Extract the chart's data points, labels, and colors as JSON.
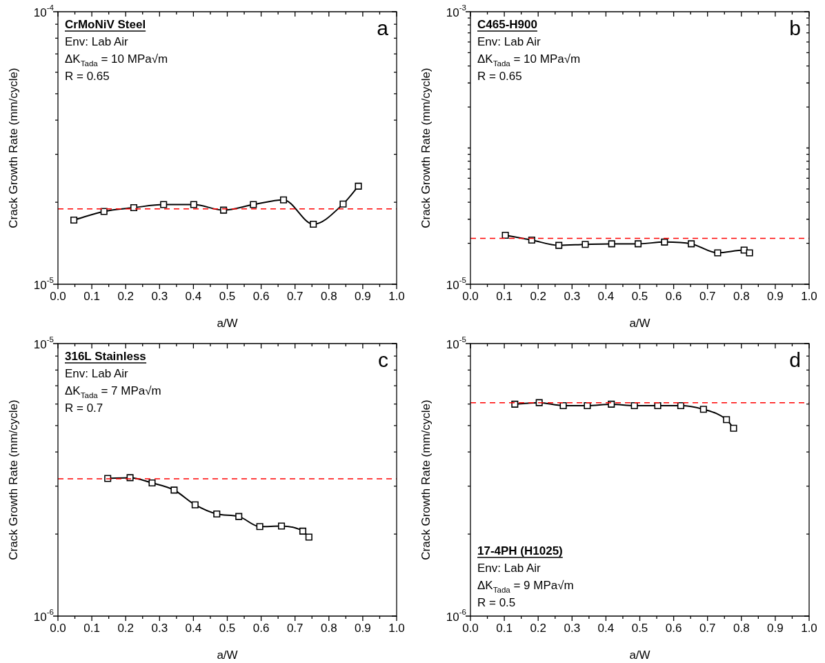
{
  "chart_data": [
    {
      "type": "line",
      "title": "CrMoNiV Steel",
      "xlabel": "a/W",
      "ylabel": "Crack Growth Rate (mm/cycle)",
      "annotations": [
        "Env: Lab Air",
        "ΔK$_{Tada}$ = 10 MPa√m",
        "R = 0.65",
        "a"
      ],
      "log": true,
      "marker": "square",
      "line_style": "solid",
      "x": [
        0.047,
        0.136,
        0.224,
        0.312,
        0.401,
        0.489,
        0.577,
        0.666,
        0.754,
        0.842,
        0.887
      ],
      "series": [
        {
          "color": "#000000",
          "values": [
            1.72e-05,
            1.85e-05,
            1.91e-05,
            1.96e-05,
            1.96e-05,
            1.87e-05,
            1.96e-05,
            2.04e-05,
            1.66e-05,
            1.97e-05,
            2.29e-05
          ]
        }
      ],
      "ref_lines": [
        {
          "axis": "y",
          "value": 1.89e-05,
          "color": "#ff0000",
          "line_style": "dashed"
        }
      ],
      "xlim": [
        0,
        1
      ],
      "xticks": [
        {
          "value": 0,
          "label": "0.0"
        },
        {
          "value": 0.05,
          "label": null
        },
        0.1,
        {
          "value": 0.15,
          "label": null
        },
        0.2,
        {
          "value": 0.25,
          "label": null
        },
        0.3,
        {
          "value": 0.35,
          "label": null
        },
        0.4,
        {
          "value": 0.45,
          "label": null
        },
        0.5,
        {
          "value": 0.55,
          "label": null
        },
        0.6,
        {
          "value": 0.65,
          "label": null
        },
        0.7,
        {
          "value": 0.75,
          "label": null
        },
        0.8,
        {
          "value": 0.85,
          "label": null
        },
        0.9,
        {
          "value": 0.95,
          "label": null
        },
        {
          "value": 1,
          "label": "1.0"
        }
      ],
      "ylim": [
        1e-05,
        0.0001
      ],
      "yticks": [
        {
          "value": 1e-05,
          "label": "10$^{-5}$"
        },
        {
          "value": 2e-05,
          "label": null
        },
        {
          "value": 3e-05,
          "label": null
        },
        {
          "value": 4e-05,
          "label": null
        },
        {
          "value": 5e-05,
          "label": null
        },
        {
          "value": 6e-05,
          "label": null
        },
        {
          "value": 7e-05,
          "label": null
        },
        {
          "value": 8e-05,
          "label": null
        },
        {
          "value": 9e-05,
          "label": null
        },
        {
          "value": 0.0001,
          "label": "10$^{-4}$"
        }
      ]
    },
    {
      "type": "line",
      "title": "C465-H900",
      "xlabel": "a/W",
      "ylabel": "Crack Growth Rate (mm/cycle)",
      "annotations": [
        "Env: Lab Air",
        "ΔK$_{Tada}$ = 10 MPa√m",
        "R = 0.65",
        "b"
      ],
      "log": true,
      "marker": "square",
      "line_style": "solid",
      "x": [
        0.103,
        0.181,
        0.261,
        0.339,
        0.417,
        0.495,
        0.573,
        0.652,
        0.73,
        0.808,
        0.824
      ],
      "series": [
        {
          "color": "#000000",
          "values": [
            2.29e-05,
            2.11e-05,
            1.93e-05,
            1.96e-05,
            1.98e-05,
            1.98e-05,
            2.04e-05,
            1.98e-05,
            1.7e-05,
            1.78e-05,
            1.7e-05
          ]
        }
      ],
      "ref_lines": [
        {
          "axis": "y",
          "value": 2.17e-05,
          "color": "#ff0000",
          "line_style": "dashed"
        }
      ],
      "xlim": [
        0,
        1
      ],
      "xticks": [
        {
          "value": 0,
          "label": "0.0"
        },
        {
          "value": 0.05,
          "label": null
        },
        0.1,
        {
          "value": 0.15,
          "label": null
        },
        0.2,
        {
          "value": 0.25,
          "label": null
        },
        0.3,
        {
          "value": 0.35,
          "label": null
        },
        0.4,
        {
          "value": 0.45,
          "label": null
        },
        0.5,
        {
          "value": 0.55,
          "label": null
        },
        0.6,
        {
          "value": 0.65,
          "label": null
        },
        0.7,
        {
          "value": 0.75,
          "label": null
        },
        0.8,
        {
          "value": 0.85,
          "label": null
        },
        0.9,
        {
          "value": 0.95,
          "label": null
        },
        {
          "value": 1,
          "label": "1.0"
        }
      ],
      "ylim": [
        1e-05,
        0.001
      ],
      "yticks": [
        {
          "value": 1e-05,
          "label": "10$^{-5}$"
        },
        {
          "value": 2e-05,
          "label": null
        },
        {
          "value": 3e-05,
          "label": null
        },
        {
          "value": 4e-05,
          "label": null
        },
        {
          "value": 5e-05,
          "label": null
        },
        {
          "value": 6e-05,
          "label": null
        },
        {
          "value": 7e-05,
          "label": null
        },
        {
          "value": 8e-05,
          "label": null
        },
        {
          "value": 9e-05,
          "label": null
        },
        {
          "value": 0.0001,
          "label": null
        },
        {
          "value": 0.0002,
          "label": null
        },
        {
          "value": 0.0003,
          "label": null
        },
        {
          "value": 0.0004,
          "label": null
        },
        {
          "value": 0.0005,
          "label": null
        },
        {
          "value": 0.0006,
          "label": null
        },
        {
          "value": 0.0007,
          "label": null
        },
        {
          "value": 0.0008,
          "label": null
        },
        {
          "value": 0.0009,
          "label": null
        },
        {
          "value": 0.001,
          "label": "10$^{-3}$"
        }
      ]
    },
    {
      "type": "line",
      "title": "316L Stainless",
      "xlabel": "a/W",
      "ylabel": "Crack Growth Rate (mm/cycle)",
      "annotations": [
        "Env: Lab Air",
        "ΔK$_{Tada}$ = 7 MPa√m",
        "R = 0.7",
        "c"
      ],
      "log": true,
      "marker": "square",
      "line_style": "solid",
      "x": [
        0.147,
        0.213,
        0.278,
        0.343,
        0.405,
        0.469,
        0.534,
        0.596,
        0.66,
        0.723,
        0.741
      ],
      "series": [
        {
          "color": "#000000",
          "values": [
            3.2e-06,
            3.22e-06,
            3.08e-06,
            2.9e-06,
            2.56e-06,
            2.37e-06,
            2.32e-06,
            2.13e-06,
            2.14e-06,
            2.05e-06,
            1.95e-06
          ]
        }
      ],
      "ref_lines": [
        {
          "axis": "y",
          "value": 3.19e-06,
          "color": "#ff0000",
          "line_style": "dashed"
        }
      ],
      "xlim": [
        0,
        1
      ],
      "xticks": [
        {
          "value": 0,
          "label": "0.0"
        },
        {
          "value": 0.05,
          "label": null
        },
        0.1,
        {
          "value": 0.15,
          "label": null
        },
        0.2,
        {
          "value": 0.25,
          "label": null
        },
        0.3,
        {
          "value": 0.35,
          "label": null
        },
        0.4,
        {
          "value": 0.45,
          "label": null
        },
        0.5,
        {
          "value": 0.55,
          "label": null
        },
        0.6,
        {
          "value": 0.65,
          "label": null
        },
        0.7,
        {
          "value": 0.75,
          "label": null
        },
        0.8,
        {
          "value": 0.85,
          "label": null
        },
        0.9,
        {
          "value": 0.95,
          "label": null
        },
        {
          "value": 1,
          "label": "1.0"
        }
      ],
      "ylim": [
        1e-06,
        1e-05
      ],
      "yticks": [
        {
          "value": 1e-06,
          "label": "10$^{-6}$"
        },
        {
          "value": 2e-06,
          "label": null
        },
        {
          "value": 3e-06,
          "label": null
        },
        {
          "value": 4e-06,
          "label": null
        },
        {
          "value": 5e-06,
          "label": null
        },
        {
          "value": 6e-06,
          "label": null
        },
        {
          "value": 7e-06,
          "label": null
        },
        {
          "value": 8e-06,
          "label": null
        },
        {
          "value": 9e-06,
          "label": null
        },
        {
          "value": 1e-05,
          "label": "10$^{-5}$"
        }
      ]
    },
    {
      "type": "line",
      "title": "17-4PH (H1025)",
      "xlabel": "a/W",
      "ylabel": "Crack Growth Rate (mm/cycle)",
      "annotations": [
        "Env: Lab Air",
        "ΔK$_{Tada}$ = 9 MPa√m",
        "R = 0.5",
        "d"
      ],
      "log": true,
      "marker": "square",
      "line_style": "solid",
      "x": [
        0.131,
        0.203,
        0.274,
        0.345,
        0.416,
        0.484,
        0.553,
        0.621,
        0.688,
        0.756,
        0.777
      ],
      "series": [
        {
          "color": "#000000",
          "values": [
            5.99e-06,
            6.07e-06,
            5.92e-06,
            5.92e-06,
            5.99e-06,
            5.92e-06,
            5.92e-06,
            5.92e-06,
            5.74e-06,
            5.26e-06,
            4.89e-06
          ]
        }
      ],
      "ref_lines": [
        {
          "axis": "y",
          "value": 6.07e-06,
          "color": "#ff0000",
          "line_style": "dashed"
        }
      ],
      "xlim": [
        0,
        1
      ],
      "xticks": [
        {
          "value": 0,
          "label": "0.0"
        },
        {
          "value": 0.05,
          "label": null
        },
        0.1,
        {
          "value": 0.15,
          "label": null
        },
        0.2,
        {
          "value": 0.25,
          "label": null
        },
        0.3,
        {
          "value": 0.35,
          "label": null
        },
        0.4,
        {
          "value": 0.45,
          "label": null
        },
        0.5,
        {
          "value": 0.55,
          "label": null
        },
        0.6,
        {
          "value": 0.65,
          "label": null
        },
        0.7,
        {
          "value": 0.75,
          "label": null
        },
        0.8,
        {
          "value": 0.85,
          "label": null
        },
        0.9,
        {
          "value": 0.95,
          "label": null
        },
        {
          "value": 1,
          "label": "1.0"
        }
      ],
      "ylim": [
        1e-06,
        1e-05
      ],
      "yticks": [
        {
          "value": 1e-06,
          "label": "10$^{-6}$"
        },
        {
          "value": 2e-06,
          "label": null
        },
        {
          "value": 3e-06,
          "label": null
        },
        {
          "value": 4e-06,
          "label": null
        },
        {
          "value": 5e-06,
          "label": null
        },
        {
          "value": 6e-06,
          "label": null
        },
        {
          "value": 7e-06,
          "label": null
        },
        {
          "value": 8e-06,
          "label": null
        },
        {
          "value": 9e-06,
          "label": null
        },
        {
          "value": 1e-05,
          "label": "10$^{-5}$"
        }
      ]
    }
  ]
}
